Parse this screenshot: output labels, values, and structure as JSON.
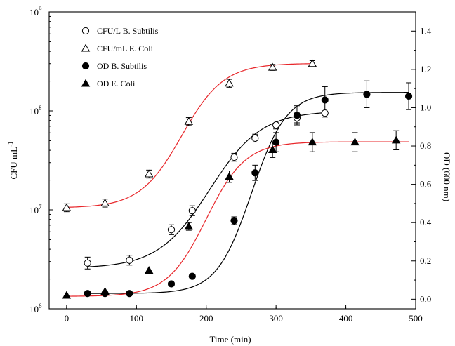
{
  "chart_data": {
    "type": "scatter",
    "title": "",
    "xlabel": "Time (min)",
    "ylabel_left": {
      "main": "CFU mL",
      "sup": "-1"
    },
    "ylabel_right": "OD (600 nm)",
    "xlim": [
      -25,
      500
    ],
    "ylim_left_log10": [
      6,
      9
    ],
    "ylim_right": [
      -0.05,
      1.5
    ],
    "x_ticks": [
      0,
      100,
      200,
      300,
      400,
      500
    ],
    "y_left_ticks": [
      {
        "base": "10",
        "exp": "6",
        "log": 6
      },
      {
        "base": "10",
        "exp": "7",
        "log": 7
      },
      {
        "base": "10",
        "exp": "8",
        "log": 8
      },
      {
        "base": "10",
        "exp": "9",
        "log": 9
      }
    ],
    "y_right_ticks": [
      "0.0",
      "0.2",
      "0.4",
      "0.6",
      "0.8",
      "1.0",
      "1.2",
      "1.4"
    ],
    "legend_position": "top-left",
    "grid": false,
    "series": [
      {
        "name": "CFU/L B. Subtilis",
        "axis": "left",
        "marker": "open-circle",
        "x": [
          30,
          90,
          150,
          180,
          240,
          270,
          300,
          330,
          370
        ],
        "y": [
          2900000.0,
          3100000.0,
          6300000.0,
          9800000.0,
          34000000.0,
          53000000.0,
          72000000.0,
          85000000.0,
          95000000.0
        ],
        "err": [
          0.06,
          0.05,
          0.05,
          0.05,
          0.04,
          0.04,
          0.04,
          0.05,
          0.04
        ],
        "fit_color": "#000000"
      },
      {
        "name": "CFU/mL E. Coli",
        "axis": "left",
        "marker": "open-triangle",
        "x": [
          0,
          55,
          118,
          175,
          233,
          295,
          352
        ],
        "y": [
          10500000.0,
          11700000.0,
          23000000.0,
          78000000.0,
          190000000.0,
          275000000.0,
          300000000.0
        ],
        "err": [
          0.04,
          0.04,
          0.04,
          0.04,
          0.04,
          0.03,
          0.03
        ],
        "fit_color": "#e8262a"
      },
      {
        "name": "OD B. Subtilis",
        "axis": "right",
        "marker": "filled-circle",
        "x": [
          30,
          55,
          90,
          150,
          180,
          240,
          270,
          300,
          330,
          370,
          430,
          490
        ],
        "y": [
          0.03,
          0.03,
          0.03,
          0.08,
          0.12,
          0.41,
          0.66,
          0.82,
          0.96,
          1.04,
          1.07,
          1.06
        ],
        "err": [
          0,
          0,
          0,
          0,
          0,
          0.02,
          0.04,
          0.05,
          0.05,
          0.07,
          0.07,
          0.07
        ],
        "fit_color": "#000000"
      },
      {
        "name": "OD E. Coli",
        "axis": "right",
        "marker": "filled-triangle",
        "x": [
          0,
          55,
          118,
          175,
          233,
          295,
          352,
          413,
          472
        ],
        "y": [
          0.02,
          0.04,
          0.15,
          0.38,
          0.64,
          0.78,
          0.82,
          0.82,
          0.83
        ],
        "err": [
          0,
          0,
          0,
          0.02,
          0.03,
          0.04,
          0.05,
          0.05,
          0.05
        ],
        "fit_color": "#e8262a"
      }
    ],
    "fits": [
      {
        "series": "CFU/L B. Subtilis",
        "axis": "left",
        "model": "logistic-log10",
        "low": 6.41,
        "high": 8.0,
        "mid": 205,
        "scale": 37,
        "x_range": [
          30,
          370
        ],
        "color": "#000000"
      },
      {
        "series": "CFU/mL E. Coli",
        "axis": "left",
        "model": "logistic-log10",
        "low": 7.02,
        "high": 8.48,
        "mid": 165,
        "scale": 30,
        "x_range": [
          0,
          352
        ],
        "color": "#e8262a"
      },
      {
        "series": "OD B. Subtilis",
        "axis": "right",
        "model": "logistic",
        "low": 0.03,
        "high": 1.08,
        "mid": 265,
        "scale": 25,
        "x_range": [
          30,
          490
        ],
        "color": "#000000"
      },
      {
        "series": "OD E. Coli",
        "axis": "right",
        "model": "logistic",
        "low": 0.015,
        "high": 0.822,
        "mid": 200,
        "scale": 28,
        "x_range": [
          0,
          490
        ],
        "color": "#e8262a"
      }
    ]
  }
}
